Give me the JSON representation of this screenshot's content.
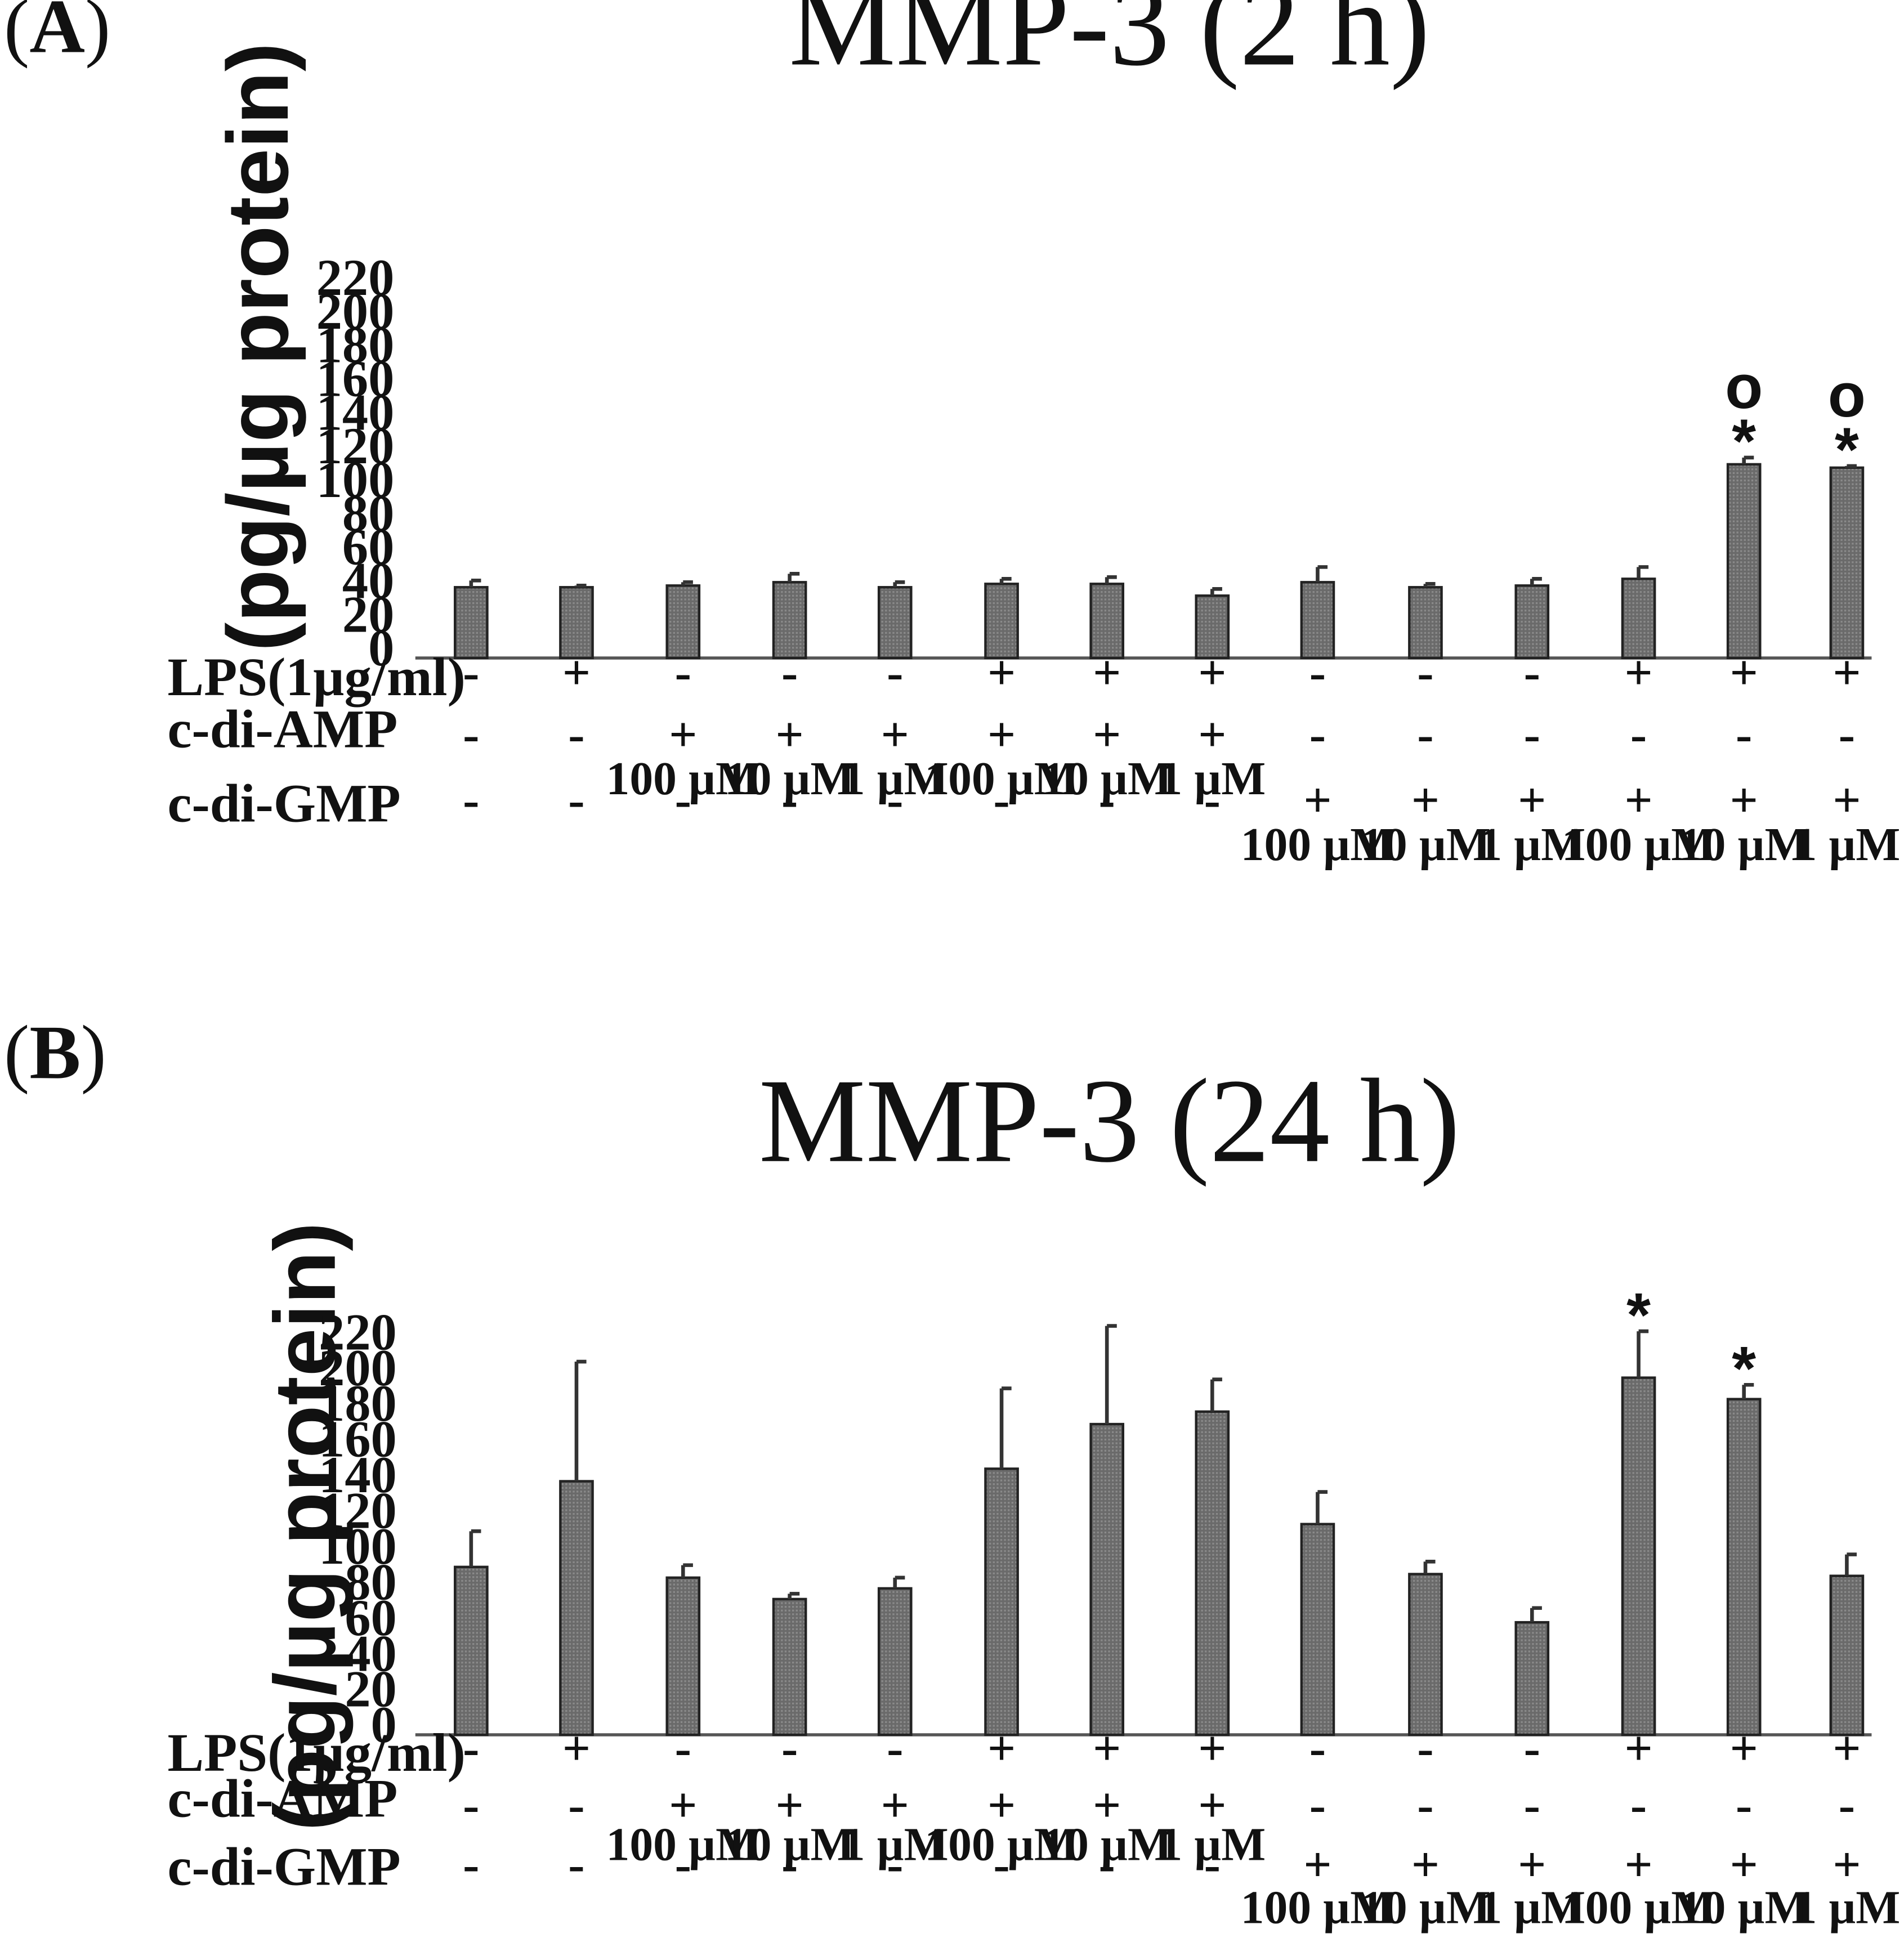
{
  "figure": {
    "rows": {
      "lps": "LPS(1µg/ml)",
      "amp": "c-di-AMP",
      "gmp": "c-di-GMP"
    },
    "groups": [
      {
        "lps": "-",
        "amp": "-",
        "amp_conc": "",
        "gmp": "-",
        "gmp_conc": ""
      },
      {
        "lps": "+",
        "amp": "-",
        "amp_conc": "",
        "gmp": "-",
        "gmp_conc": ""
      },
      {
        "lps": "-",
        "amp": "+",
        "amp_conc": "100 µM",
        "gmp": "-",
        "gmp_conc": ""
      },
      {
        "lps": "-",
        "amp": "+",
        "amp_conc": "10 µM",
        "gmp": "-",
        "gmp_conc": ""
      },
      {
        "lps": "-",
        "amp": "+",
        "amp_conc": "1 µM",
        "gmp": "-",
        "gmp_conc": ""
      },
      {
        "lps": "+",
        "amp": "+",
        "amp_conc": "100 µM",
        "gmp": "-",
        "gmp_conc": ""
      },
      {
        "lps": "+",
        "amp": "+",
        "amp_conc": "10 µM",
        "gmp": "-",
        "gmp_conc": ""
      },
      {
        "lps": "+",
        "amp": "+",
        "amp_conc": "1 µM",
        "gmp": "-",
        "gmp_conc": ""
      },
      {
        "lps": "-",
        "amp": "-",
        "amp_conc": "",
        "gmp": "+",
        "gmp_conc": "100 µM"
      },
      {
        "lps": "-",
        "amp": "-",
        "amp_conc": "",
        "gmp": "+",
        "gmp_conc": "10 µM"
      },
      {
        "lps": "-",
        "amp": "-",
        "amp_conc": "",
        "gmp": "+",
        "gmp_conc": "1 µM"
      },
      {
        "lps": "+",
        "amp": "-",
        "amp_conc": "",
        "gmp": "+",
        "gmp_conc": "100 µM"
      },
      {
        "lps": "+",
        "amp": "-",
        "amp_conc": "",
        "gmp": "+",
        "gmp_conc": "10 µM"
      },
      {
        "lps": "+",
        "amp": "-",
        "amp_conc": "",
        "gmp": "+",
        "gmp_conc": "1 µM"
      }
    ]
  },
  "chart_data": [
    {
      "panel_label": "(A)",
      "panel_letter": "A",
      "type": "bar",
      "title": "MMP-3 (2 h)",
      "ylabel": "(pg/µg protein)",
      "xlabel": "",
      "ylim": [
        0,
        220
      ],
      "yticks": [
        0,
        20,
        40,
        60,
        80,
        100,
        120,
        140,
        160,
        180,
        200,
        220
      ],
      "values": [
        42,
        42,
        43,
        45,
        42,
        44,
        44,
        37,
        45,
        42,
        43,
        47,
        115,
        113
      ],
      "errors": [
        4,
        1,
        2,
        5,
        3,
        3,
        4,
        4,
        9,
        2,
        4,
        7,
        4,
        1
      ],
      "annotations": [
        "",
        "",
        "",
        "",
        "",
        "",
        "",
        "",
        "",
        "",
        "",
        "",
        "*o",
        "*o"
      ]
    },
    {
      "panel_label": "(B)",
      "panel_letter": "B",
      "type": "bar",
      "title": "MMP-3 (24 h)",
      "ylabel": "(pg/µg protein)",
      "xlabel": "",
      "ylim": [
        0,
        220
      ],
      "yticks": [
        0,
        20,
        40,
        60,
        80,
        100,
        120,
        140,
        160,
        180,
        200,
        220
      ],
      "values": [
        94,
        142,
        88,
        76,
        82,
        149,
        174,
        181,
        118,
        90,
        63,
        200,
        188,
        89
      ],
      "errors": [
        20,
        67,
        7,
        3,
        6,
        45,
        55,
        18,
        18,
        7,
        8,
        26,
        8,
        12
      ],
      "annotations": [
        "",
        "",
        "",
        "",
        "",
        "",
        "",
        "",
        "",
        "",
        "",
        "*",
        "*",
        ""
      ]
    }
  ]
}
